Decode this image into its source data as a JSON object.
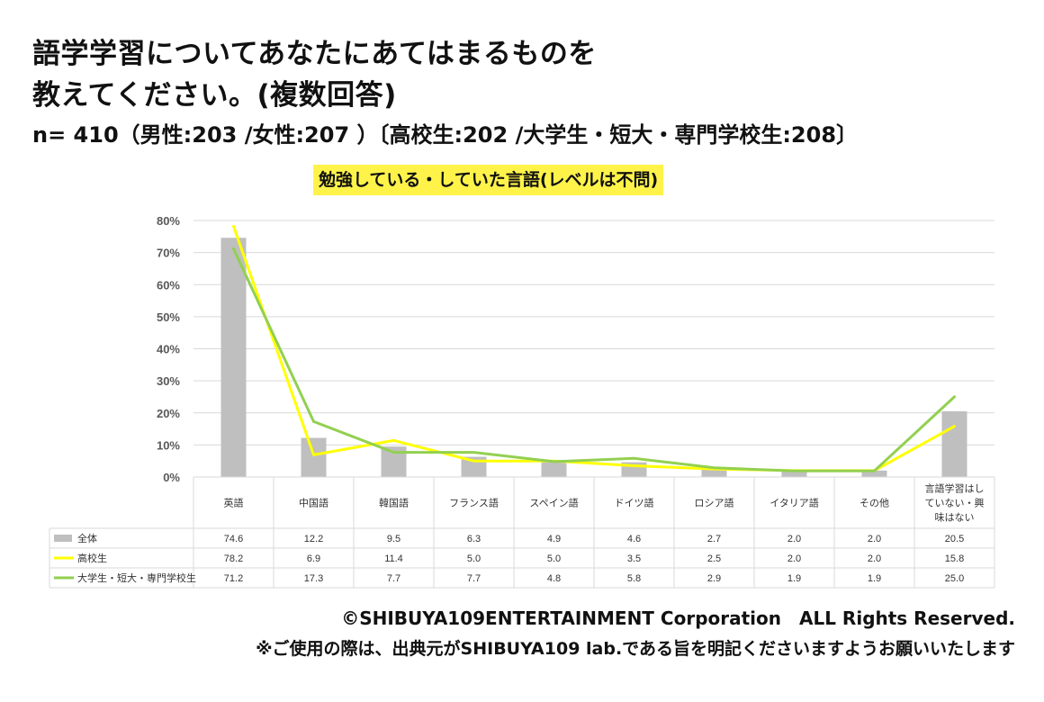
{
  "heading": {
    "line1": "語学学習についてあなたにあてはまるものを",
    "line2": "教えてください。(複数回答)",
    "sample": "n= 410（男性:203 /女性:207 ）〔高校生:202 /大学生・短大・専門学校生:208〕"
  },
  "footer": {
    "copyright": "©SHIBUYA109ENTERTAINMENT Corporation　ALL Rights Reserved.",
    "notice": "※ご使用の際は、出典元がSHIBUYA109 lab.である旨を明記くださいますようお願いいたします"
  },
  "colors": {
    "bar": "#bfbfbf",
    "high_school": "#ffff00",
    "university": "#92d050",
    "grid": "#d9d9d9",
    "title_highlight": "#fff34a"
  },
  "chart_data": {
    "type": "bar",
    "title": "勉強している・していた言語(レベルは不問)",
    "categories": [
      "英語",
      "中国語",
      "韓国語",
      "フランス語",
      "スペイン語",
      "ドイツ語",
      "ロシア語",
      "イタリア語",
      "その他",
      "言語学習はしていない・興味はない"
    ],
    "category_lines": [
      [
        "英語"
      ],
      [
        "中国語"
      ],
      [
        "韓国語"
      ],
      [
        "フランス語"
      ],
      [
        "スペイン語"
      ],
      [
        "ドイツ語"
      ],
      [
        "ロシア語"
      ],
      [
        "イタリア語"
      ],
      [
        "その他"
      ],
      [
        "言語学習はし",
        "ていない・興",
        "味はない"
      ]
    ],
    "y_ticks": [
      "0%",
      "10%",
      "20%",
      "30%",
      "40%",
      "50%",
      "60%",
      "70%",
      "80%"
    ],
    "ylim": [
      0,
      80
    ],
    "grid": true,
    "series": [
      {
        "name": "全体",
        "kind": "bar",
        "values": [
          74.6,
          12.2,
          9.5,
          6.3,
          4.9,
          4.6,
          2.7,
          2.0,
          2.0,
          20.5
        ],
        "labels": [
          "74.6",
          "12.2",
          "9.5",
          "6.3",
          "4.9",
          "4.6",
          "2.7",
          "2.0",
          "2.0",
          "20.5"
        ]
      },
      {
        "name": "高校生",
        "kind": "line",
        "values": [
          78.2,
          6.9,
          11.4,
          5.0,
          5.0,
          3.5,
          2.5,
          2.0,
          2.0,
          15.8
        ],
        "labels": [
          "78.2",
          "6.9",
          "11.4",
          "5.0",
          "5.0",
          "3.5",
          "2.5",
          "2.0",
          "2.0",
          "15.8"
        ]
      },
      {
        "name": "大学生・短大・専門学校生",
        "kind": "line",
        "values": [
          71.2,
          17.3,
          7.7,
          7.7,
          4.8,
          5.8,
          2.9,
          1.9,
          1.9,
          25.0
        ],
        "labels": [
          "71.2",
          "17.3",
          "7.7",
          "7.7",
          "4.8",
          "5.8",
          "2.9",
          "1.9",
          "1.9",
          "25.0"
        ]
      }
    ]
  }
}
